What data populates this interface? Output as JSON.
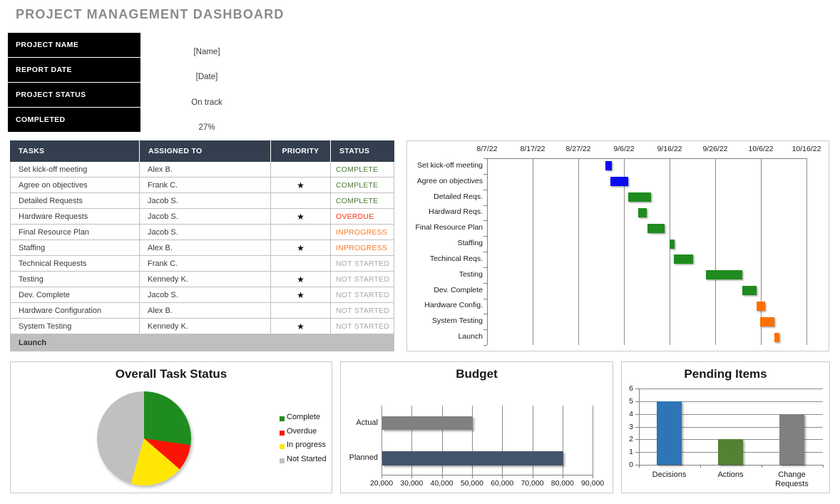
{
  "title": "PROJECT MANAGEMENT DASHBOARD",
  "info_panel": {
    "rows": [
      {
        "label": "PROJECT NAME",
        "value": "[Name]"
      },
      {
        "label": "REPORT DATE",
        "value": "[Date]"
      },
      {
        "label": "PROJECT STATUS",
        "value": "On track"
      },
      {
        "label": "COMPLETED",
        "value": "27%"
      }
    ]
  },
  "task_table": {
    "headers": [
      "TASKS",
      "ASSIGNED TO",
      "PRIORITY",
      "STATUS"
    ],
    "priority_symbol": "★",
    "status_colors": {
      "COMPLETE": "#4d7b3a",
      "OVERDUE": "#ff2d16",
      "INPROGRESS": "#f97b28",
      "NOT STARTED": "#a8a8a8"
    },
    "rows": [
      {
        "task": "Set kick-off meeting",
        "assigned_to": "Alex B.",
        "priority": false,
        "status": "COMPLETE",
        "footer": false
      },
      {
        "task": "Agree on objectives",
        "assigned_to": "Frank C.",
        "priority": true,
        "status": "COMPLETE",
        "footer": false
      },
      {
        "task": "Detailed Requests",
        "assigned_to": "Jacob S.",
        "priority": false,
        "status": "COMPLETE",
        "footer": false
      },
      {
        "task": "Hardware Requests",
        "assigned_to": "Jacob S.",
        "priority": true,
        "status": "OVERDUE",
        "footer": false
      },
      {
        "task": "Final Resource Plan",
        "assigned_to": "Jacob S.",
        "priority": false,
        "status": "INPROGRESS",
        "footer": false
      },
      {
        "task": "Staffing",
        "assigned_to": "Alex B.",
        "priority": true,
        "status": "INPROGRESS",
        "footer": false
      },
      {
        "task": "Technical Requests",
        "assigned_to": "Frank C.",
        "priority": false,
        "status": "NOT STARTED",
        "footer": false
      },
      {
        "task": "Testing",
        "assigned_to": "Kennedy K.",
        "priority": true,
        "status": "NOT STARTED",
        "footer": false
      },
      {
        "task": "Dev. Complete",
        "assigned_to": "Jacob S.",
        "priority": true,
        "status": "NOT STARTED",
        "footer": false
      },
      {
        "task": "Hardware Configuration",
        "assigned_to": "Alex B.",
        "priority": false,
        "status": "NOT STARTED",
        "footer": false
      },
      {
        "task": "System Testing",
        "assigned_to": "Kennedy K.",
        "priority": true,
        "status": "NOT STARTED",
        "footer": false
      },
      {
        "task": "Launch",
        "assigned_to": "",
        "priority": false,
        "status": "",
        "footer": true
      }
    ]
  },
  "chart_data": [
    {
      "id": "gantt",
      "type": "gantt",
      "title": "",
      "axis_start_date": "8/7/22",
      "days_per_tick": 10,
      "x_tick_labels": [
        "8/7/22",
        "8/17/22",
        "8/27/22",
        "9/6/22",
        "9/16/22",
        "9/26/22",
        "10/6/22",
        "10/16/22"
      ],
      "bars": [
        {
          "label": "Set kick-off meeting",
          "start": "9/2/22",
          "end": "9/3/22",
          "start_day": 26,
          "days": 1.4,
          "color": "#0b0bf0"
        },
        {
          "label": "Agree on objectives",
          "start": "9/3/22",
          "end": "9/7/22",
          "start_day": 27.1,
          "days": 3.8,
          "color": "#0b0bf0"
        },
        {
          "label": "Detailed Reqs.",
          "start": "9/7/22",
          "end": "9/12/22",
          "start_day": 31,
          "days": 4.9,
          "color": "#1e8c1e"
        },
        {
          "label": "Hardward Reqs.",
          "start": "9/9/22",
          "end": "9/11/22",
          "start_day": 33.1,
          "days": 1.9,
          "color": "#1e8c1e"
        },
        {
          "label": "Final Resource Plan",
          "start": "9/11/22",
          "end": "9/15/22",
          "start_day": 35.1,
          "days": 3.8,
          "color": "#1e8c1e"
        },
        {
          "label": "Staffing",
          "start": "9/16/22",
          "end": "9/17/22",
          "start_day": 40,
          "days": 1.1,
          "color": "#1e8c1e"
        },
        {
          "label": "Techincal Reqs.",
          "start": "9/17/22",
          "end": "9/21/22",
          "start_day": 41,
          "days": 4.1,
          "color": "#1e8c1e"
        },
        {
          "label": "Testing",
          "start": "9/24/22",
          "end": "10/2/22",
          "start_day": 48,
          "days": 8,
          "color": "#1e8c1e"
        },
        {
          "label": "Dev. Complete",
          "start": "10/2/22",
          "end": "10/5/22",
          "start_day": 56,
          "days": 3,
          "color": "#1e8c1e"
        },
        {
          "label": "Hardware Config.",
          "start": "10/5/22",
          "end": "10/7/22",
          "start_day": 59,
          "days": 1.9,
          "color": "#ff7000"
        },
        {
          "label": "System Testing",
          "start": "10/6/22",
          "end": "10/9/22",
          "start_day": 59.9,
          "days": 3.1,
          "color": "#ff7000"
        },
        {
          "label": "Launch",
          "start": "10/9/22",
          "end": "10/10/22",
          "start_day": 63,
          "days": 1.1,
          "color": "#ff7000"
        }
      ]
    },
    {
      "id": "overall-task-status",
      "type": "pie",
      "title": "Overall Task Status",
      "legend_position": "right",
      "slices": [
        {
          "label": "Complete",
          "value": 3,
          "color": "#1e8c1e"
        },
        {
          "label": "Overdue",
          "value": 1,
          "color": "#fb1405"
        },
        {
          "label": "In progress",
          "value": 2,
          "color": "#ffe605"
        },
        {
          "label": "Not Started",
          "value": 5,
          "color": "#c0c0c0"
        }
      ]
    },
    {
      "id": "budget",
      "type": "bar",
      "orientation": "horizontal",
      "title": "Budget",
      "categories": [
        "Actual",
        "Planned"
      ],
      "values": [
        50000,
        80000
      ],
      "colors": [
        "#808080",
        "#44546a"
      ],
      "xlim": [
        20000,
        90000
      ],
      "x_tick_step": 10000,
      "x_tick_labels": [
        "20,000",
        "30,000",
        "40,000",
        "50,000",
        "60,000",
        "70,000",
        "80,000",
        "90,000"
      ]
    },
    {
      "id": "pending-items",
      "type": "bar",
      "orientation": "vertical",
      "title": "Pending Items",
      "categories": [
        "Decisions",
        "Actions",
        "Change Requests"
      ],
      "values": [
        5,
        2,
        4
      ],
      "colors": [
        "#2e75b6",
        "#548235",
        "#808080"
      ],
      "ylim": [
        0,
        6
      ],
      "y_tick_step": 1,
      "y_tick_labels": [
        "0",
        "1",
        "2",
        "3",
        "4",
        "5",
        "6"
      ]
    }
  ]
}
